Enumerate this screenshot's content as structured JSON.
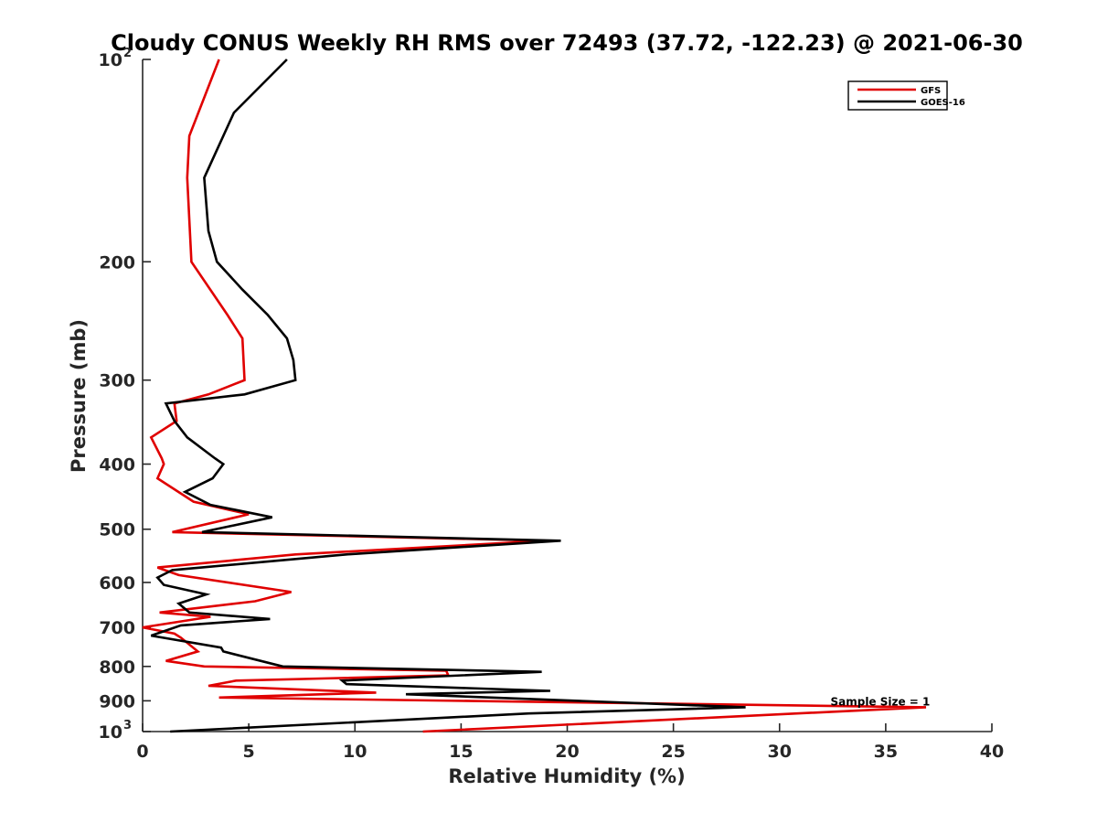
{
  "chart_data": {
    "type": "line",
    "title": "Cloudy CONUS Weekly RH RMS over 72493 (37.72, -122.23) @ 2021-06-30",
    "xlabel": "Relative Humidity (%)",
    "ylabel": "Pressure (mb)",
    "xlim": [
      0,
      40
    ],
    "ylim": [
      100,
      1000
    ],
    "y_scale": "log",
    "y_reversed": true,
    "grid": false,
    "legend_position": "top-right",
    "x_ticks": [
      "0",
      "5",
      "10",
      "15",
      "20",
      "25",
      "30",
      "35",
      "40"
    ],
    "y_ticks": [
      {
        "value": 100,
        "base": "10",
        "exp": "2"
      },
      {
        "value": 200,
        "label": "200"
      },
      {
        "value": 300,
        "label": "300"
      },
      {
        "value": 400,
        "label": "400"
      },
      {
        "value": 500,
        "label": "500"
      },
      {
        "value": 600,
        "label": "600"
      },
      {
        "value": 700,
        "label": "700"
      },
      {
        "value": 800,
        "label": "800"
      },
      {
        "value": 900,
        "label": "900"
      },
      {
        "value": 1000,
        "base": "10",
        "exp": "3"
      }
    ],
    "annotation": "Sample Size = 1",
    "annotation_at": {
      "x": 32.4,
      "y": 900
    },
    "series": [
      {
        "name": "GFS",
        "color": "#e00000",
        "points": [
          [
            3.6,
            100
          ],
          [
            2.2,
            130
          ],
          [
            2.1,
            150
          ],
          [
            2.3,
            200
          ],
          [
            4.0,
            240
          ],
          [
            4.7,
            260
          ],
          [
            4.8,
            300
          ],
          [
            3.1,
            315
          ],
          [
            1.5,
            325
          ],
          [
            1.6,
            345
          ],
          [
            0.4,
            365
          ],
          [
            0.9,
            392
          ],
          [
            1.0,
            400
          ],
          [
            0.7,
            420
          ],
          [
            2.4,
            455
          ],
          [
            5.0,
            475
          ],
          [
            1.4,
            505
          ],
          [
            19.0,
            520
          ],
          [
            7.2,
            545
          ],
          [
            0.7,
            570
          ],
          [
            1.7,
            585
          ],
          [
            7.0,
            620
          ],
          [
            5.3,
            640
          ],
          [
            0.8,
            665
          ],
          [
            3.2,
            675
          ],
          [
            0.0,
            700
          ],
          [
            1.5,
            715
          ],
          [
            1.8,
            725
          ],
          [
            2.6,
            760
          ],
          [
            1.1,
            785
          ],
          [
            2.9,
            800
          ],
          [
            14.3,
            812
          ],
          [
            14.4,
            825
          ],
          [
            4.4,
            840
          ],
          [
            3.1,
            855
          ],
          [
            11.0,
            875
          ],
          [
            3.6,
            890
          ],
          [
            36.9,
            920
          ],
          [
            13.2,
            1000
          ]
        ]
      },
      {
        "name": "GOES-16",
        "color": "#000000",
        "points": [
          [
            6.8,
            100
          ],
          [
            4.3,
            120
          ],
          [
            2.9,
            150
          ],
          [
            3.1,
            180
          ],
          [
            3.5,
            200
          ],
          [
            4.7,
            220
          ],
          [
            5.9,
            240
          ],
          [
            6.8,
            260
          ],
          [
            7.1,
            280
          ],
          [
            7.2,
            300
          ],
          [
            4.8,
            315
          ],
          [
            1.1,
            325
          ],
          [
            1.5,
            345
          ],
          [
            2.1,
            365
          ],
          [
            3.4,
            392
          ],
          [
            3.8,
            400
          ],
          [
            3.3,
            420
          ],
          [
            2.0,
            440
          ],
          [
            3.2,
            460
          ],
          [
            6.1,
            480
          ],
          [
            2.8,
            505
          ],
          [
            19.7,
            520
          ],
          [
            9.6,
            545
          ],
          [
            1.4,
            575
          ],
          [
            0.7,
            590
          ],
          [
            1.0,
            605
          ],
          [
            3.0,
            625
          ],
          [
            1.7,
            645
          ],
          [
            2.2,
            665
          ],
          [
            6.0,
            680
          ],
          [
            1.8,
            695
          ],
          [
            0.4,
            720
          ],
          [
            3.7,
            750
          ],
          [
            3.8,
            760
          ],
          [
            6.6,
            800
          ],
          [
            18.8,
            815
          ],
          [
            9.4,
            840
          ],
          [
            9.6,
            850
          ],
          [
            19.2,
            870
          ],
          [
            12.4,
            880
          ],
          [
            28.4,
            920
          ],
          [
            18.2,
            940
          ],
          [
            1.3,
            1000
          ]
        ]
      }
    ]
  }
}
